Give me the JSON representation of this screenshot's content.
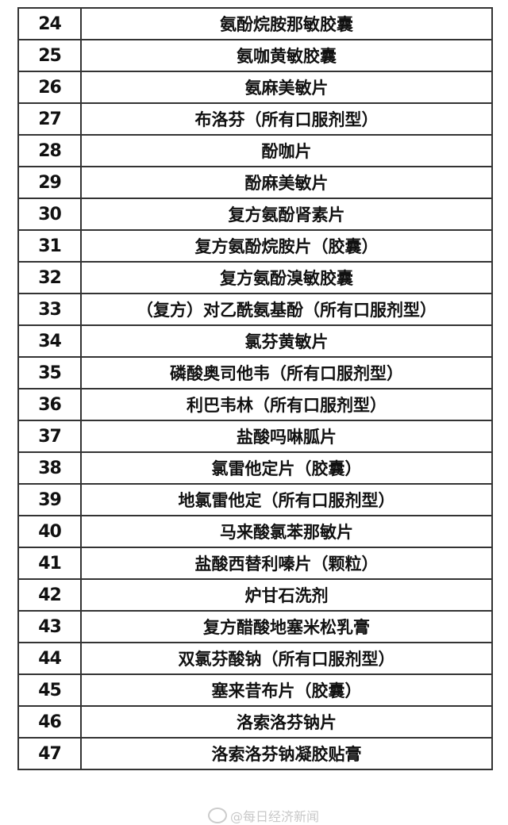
{
  "rows": [
    {
      "num": "24",
      "name": "氨酚烷胺那敏胶囊"
    },
    {
      "num": "25",
      "name": "氨咖黄敏胶囊"
    },
    {
      "num": "26",
      "name": "氨麻美敏片"
    },
    {
      "num": "27",
      "name": "布洛芬（所有口服剂型）"
    },
    {
      "num": "28",
      "name": "酚咖片"
    },
    {
      "num": "29",
      "name": "酚麻美敏片"
    },
    {
      "num": "30",
      "name": "复方氨酚肾素片"
    },
    {
      "num": "31",
      "name": "复方氨酚烷胺片（胶囊）"
    },
    {
      "num": "32",
      "name": "复方氨酚溴敏胶囊"
    },
    {
      "num": "33",
      "name": "（复方）对乙酰氨基酚（所有口服剂型）"
    },
    {
      "num": "34",
      "name": "氯芬黄敏片"
    },
    {
      "num": "35",
      "name": "磷酸奥司他韦（所有口服剂型）"
    },
    {
      "num": "36",
      "name": "利巴韦林（所有口服剂型）"
    },
    {
      "num": "37",
      "name": "盐酸吗啉胍片"
    },
    {
      "num": "38",
      "name": "氯雷他定片（胶囊）"
    },
    {
      "num": "39",
      "name": "地氯雷他定（所有口服剂型）"
    },
    {
      "num": "40",
      "name": "马来酸氯苯那敏片"
    },
    {
      "num": "41",
      "name": "盐酸西替利嗪片（颗粒）"
    },
    {
      "num": "42",
      "name": "炉甘石洗剂"
    },
    {
      "num": "43",
      "name": "复方醋酸地塞米松乳膏"
    },
    {
      "num": "44",
      "name": "双氯芬酸钠（所有口服剂型）"
    },
    {
      "num": "45",
      "name": "塞来昔布片（胶囊）"
    },
    {
      "num": "46",
      "name": "洛索洛芬钠片"
    },
    {
      "num": "47",
      "name": "洛索洛芬钠凝胶贴膏"
    }
  ],
  "watermark": {
    "text": "@每日经济新闻",
    "icon": "weibo-logo-icon"
  }
}
